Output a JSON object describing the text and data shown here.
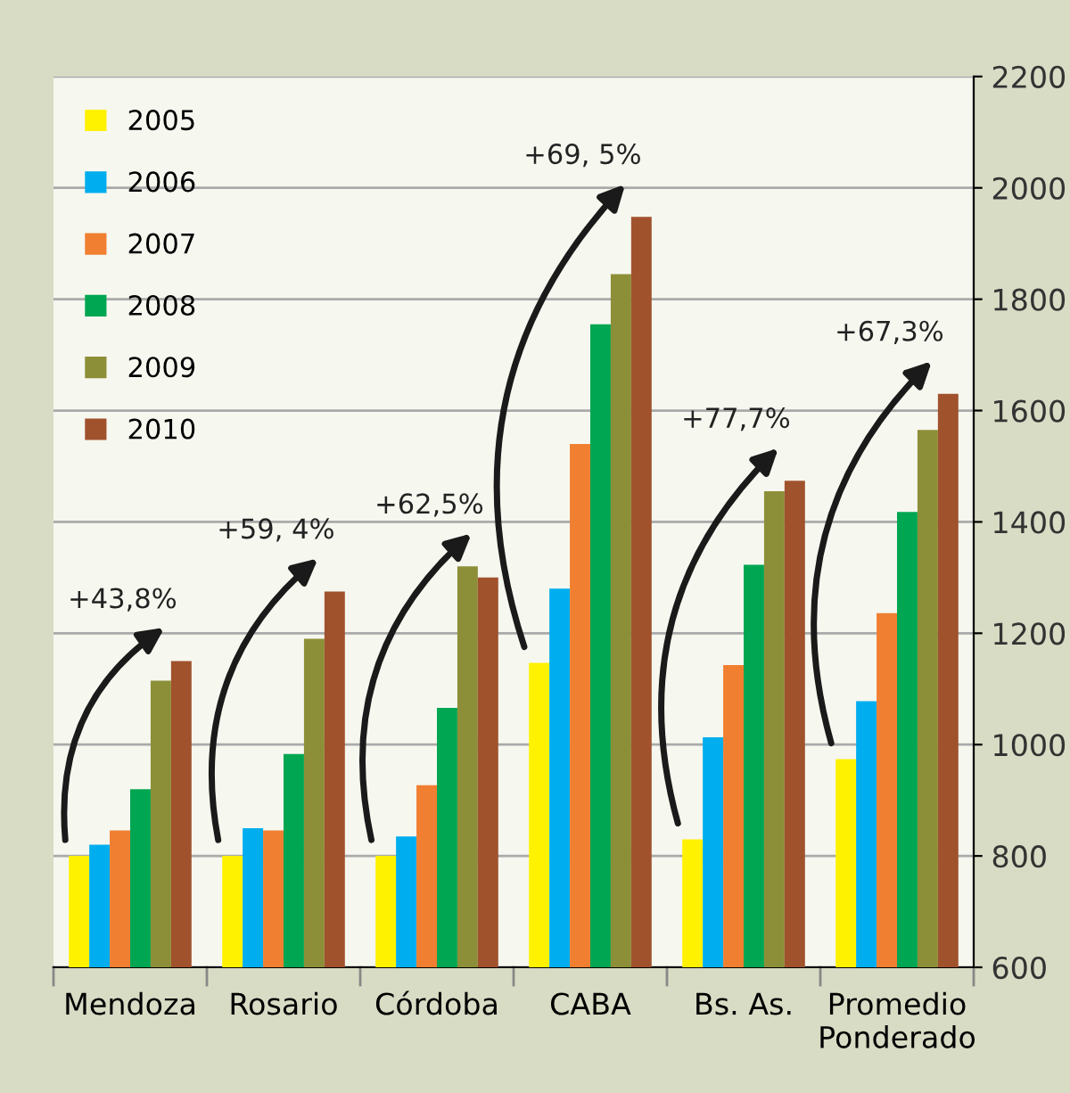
{
  "chart_data": {
    "type": "bar",
    "categories": [
      "Mendoza",
      "Rosario",
      "Córdoba",
      "CABA",
      "Bs. As.",
      "Promedio\nPonderado"
    ],
    "series": [
      {
        "name": "2005",
        "color": "#fff200",
        "values": [
          800,
          800,
          800,
          1147,
          830,
          974
        ]
      },
      {
        "name": "2006",
        "color": "#00aeef",
        "values": [
          820,
          850,
          835,
          1280,
          1013,
          1078
        ]
      },
      {
        "name": "2007",
        "color": "#f07f31",
        "values": [
          846,
          846,
          927,
          1540,
          1143,
          1236
        ]
      },
      {
        "name": "2008",
        "color": "#00a651",
        "values": [
          920,
          983,
          1066,
          1755,
          1323,
          1418
        ]
      },
      {
        "name": "2009",
        "color": "#8c8f37",
        "values": [
          1115,
          1190,
          1320,
          1845,
          1455,
          1565
        ]
      },
      {
        "name": "2010",
        "color": "#a0522d",
        "values": [
          1150,
          1275,
          1300,
          1948,
          1474,
          1630
        ]
      }
    ],
    "ylim": [
      600,
      2200
    ],
    "yticks": [
      600,
      800,
      1000,
      1200,
      1400,
      1600,
      1800,
      2000,
      2200
    ],
    "grid": "y",
    "legend": "top left",
    "annotations": [
      "+43,8%",
      "+59, 4%",
      "+62,5%",
      "+69, 5%",
      "+77,7%",
      "+67,3%"
    ]
  }
}
